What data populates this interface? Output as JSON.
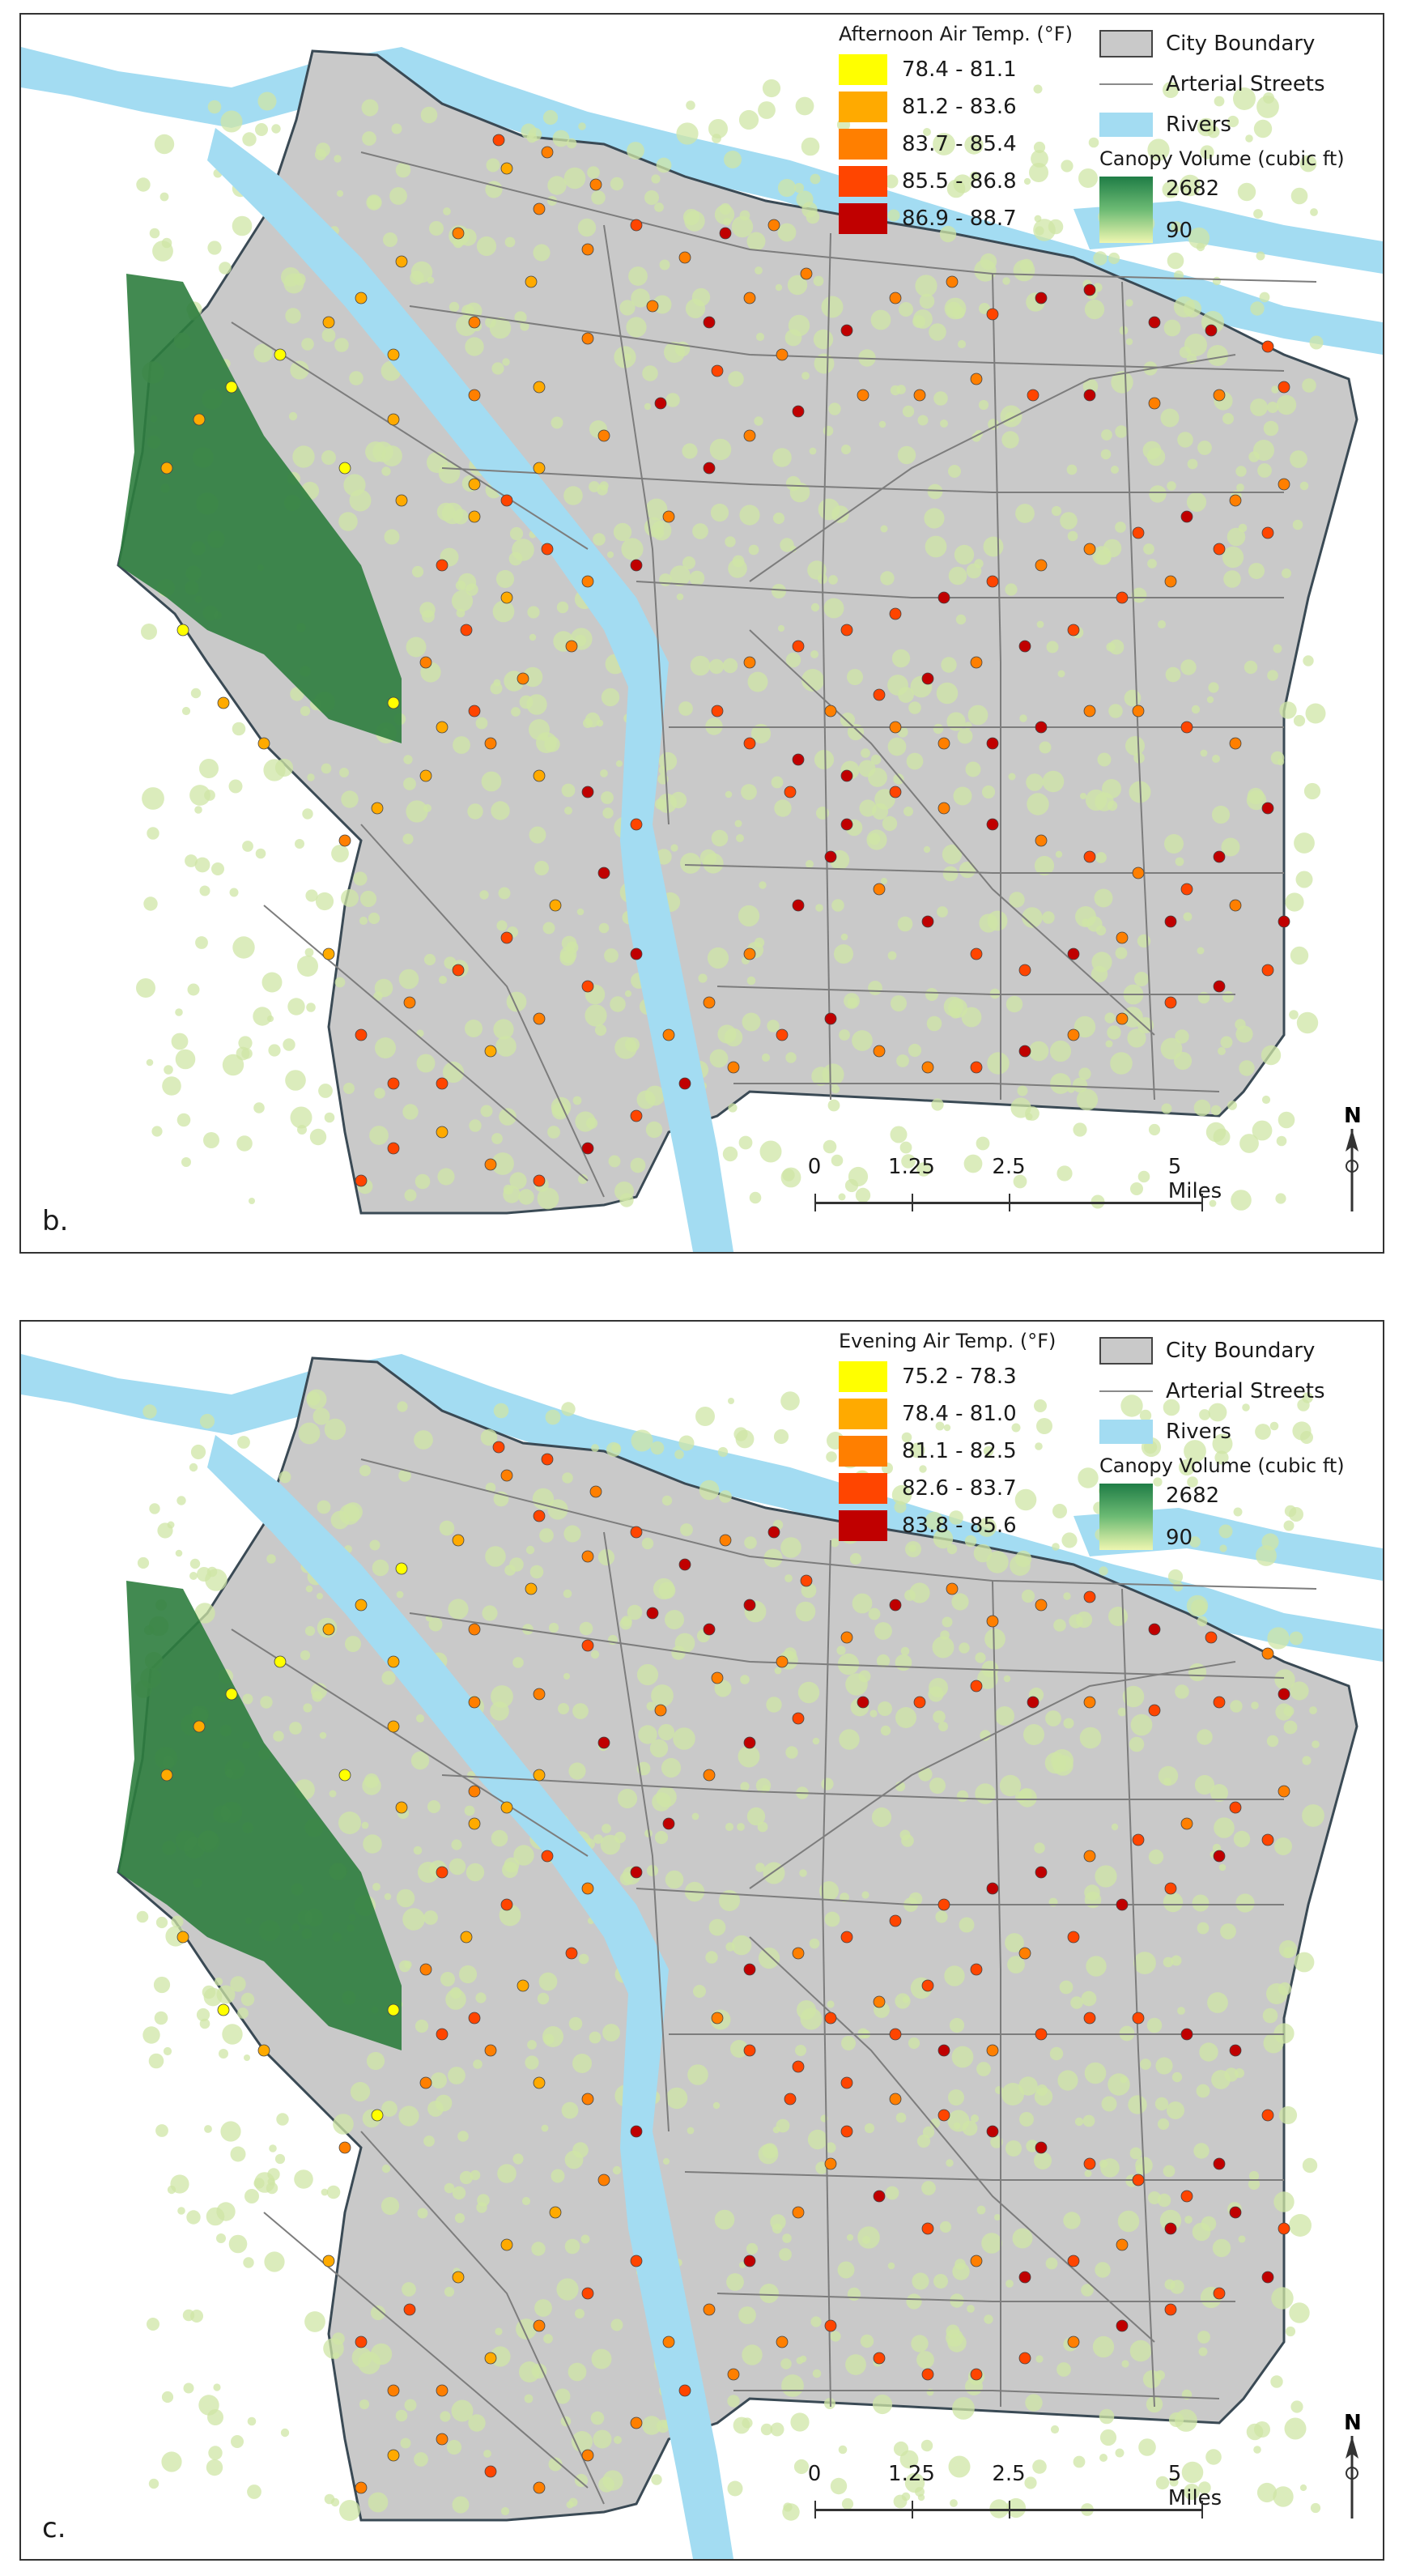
{
  "panels": [
    {
      "label": "b.",
      "legend_title": "Afternoon Air Temp. (°F)",
      "classes": [
        {
          "range": "78.4 - 81.1",
          "color": "#ffff00"
        },
        {
          "range": "81.2 - 83.6",
          "color": "#ffaa00"
        },
        {
          "range": "83.7 - 85.4",
          "color": "#ff7f00"
        },
        {
          "range": "85.5 - 86.8",
          "color": "#ff4500"
        },
        {
          "range": "86.9 - 88.7",
          "color": "#c00000"
        }
      ]
    },
    {
      "label": "c.",
      "legend_title": "Evening Air Temp. (°F)",
      "classes": [
        {
          "range": "75.2 - 78.3",
          "color": "#ffff00"
        },
        {
          "range": "78.4 - 81.0",
          "color": "#ffaa00"
        },
        {
          "range": "81.1 - 82.5",
          "color": "#ff7f00"
        },
        {
          "range": "82.6 - 83.7",
          "color": "#ff4500"
        },
        {
          "range": "83.8 - 85.6",
          "color": "#c00000"
        }
      ]
    }
  ],
  "reference_legend": {
    "city_boundary": "City Boundary",
    "arterial_streets": "Arterial Streets",
    "rivers": "Rivers",
    "canopy_title": "Canopy Volume (cubic ft)",
    "canopy_max": "2682",
    "canopy_min": "90"
  },
  "scale_bar": {
    "ticks": [
      "0",
      "1.25",
      "2.5",
      "5 Miles"
    ]
  },
  "north_arrow": {
    "letter": "N",
    "icon": "north-arrow-icon"
  },
  "colors": {
    "river": "#a3dcf2",
    "city": "#c9c9c9",
    "canopy_dark": "#2e7d3e",
    "canopy_light": "#cfe6a6",
    "street": "#7d7d7d"
  }
}
